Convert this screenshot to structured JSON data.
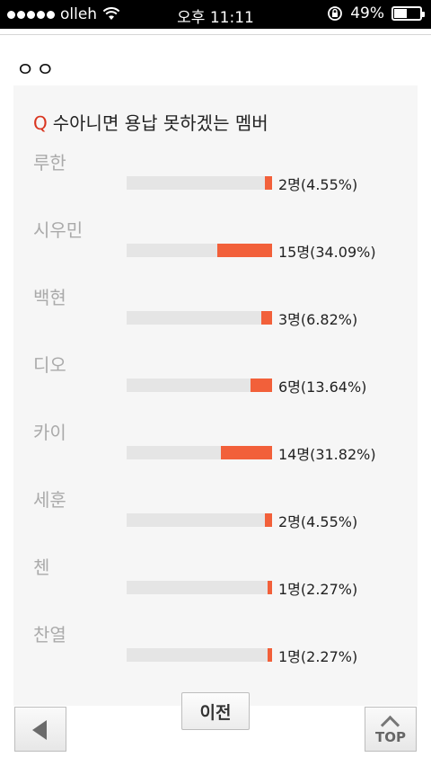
{
  "status_bar": {
    "carrier": "olleh",
    "time": "오후 11:11",
    "battery": "49%",
    "battery_level": 0.49,
    "icons": [
      "signal-dots-icon",
      "wifi-icon",
      "rotation-lock-icon",
      "battery-icon"
    ]
  },
  "page": {
    "heading": "ㅇㅇ"
  },
  "poll": {
    "q_mark": "Q",
    "question": "수아니면 용납 못하겠는 멤버",
    "accent_color": "#f2603a",
    "options": [
      {
        "label": "루한",
        "result": "2명(4.55%)",
        "percent": 4.55
      },
      {
        "label": "시우민",
        "result": "15명(34.09%)",
        "percent": 34.09
      },
      {
        "label": "백현",
        "result": "3명(6.82%)",
        "percent": 6.82
      },
      {
        "label": "디오",
        "result": "6명(13.64%)",
        "percent": 13.64
      },
      {
        "label": "카이",
        "result": "14명(31.82%)",
        "percent": 31.82
      },
      {
        "label": "세훈",
        "result": "2명(4.55%)",
        "percent": 4.55
      },
      {
        "label": "첸",
        "result": "1명(2.27%)",
        "percent": 2.27
      },
      {
        "label": "찬열",
        "result": "1명(2.27%)",
        "percent": 2.27
      }
    ]
  },
  "nav": {
    "prev_label": "이전",
    "back_icon": "back-arrow-icon",
    "top_label": "TOP"
  }
}
